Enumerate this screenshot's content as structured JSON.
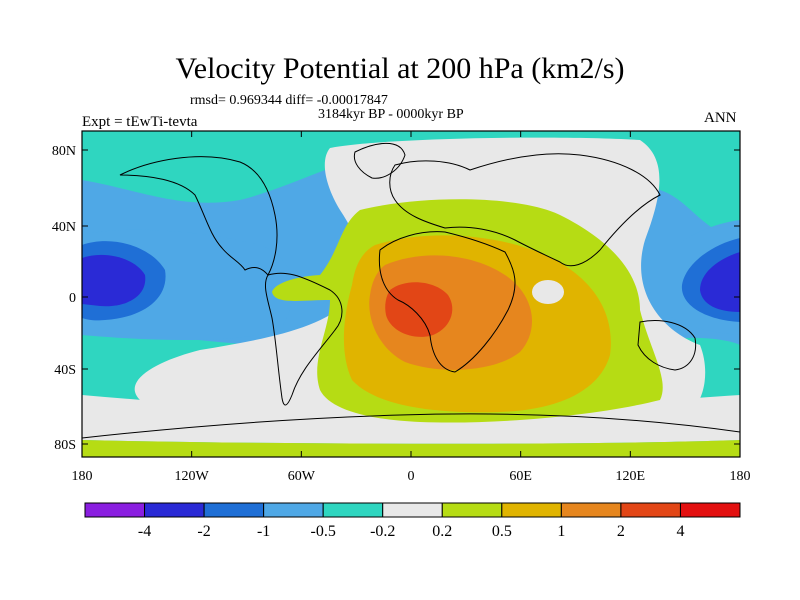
{
  "title": "Velocity Potential at 200 hPa (km2/s)",
  "stats": "rmsd= 0.969344 diff= -0.00017847",
  "period": "3184kyr BP - 0000kyr BP",
  "expt": "Expt = tEwTi-tevta",
  "season": "ANN",
  "axes": {
    "x_ticks": [
      "180",
      "120W",
      "60W",
      "0",
      "60E",
      "120E",
      "180"
    ],
    "y_ticks": [
      "80N",
      "40N",
      "0",
      "40S",
      "80S"
    ]
  },
  "colorbar": {
    "colors": [
      "#8a1ee0",
      "#2a2ad6",
      "#1f6fd6",
      "#4fa8e6",
      "#2fd6c0",
      "#e8e8e8",
      "#b6dc14",
      "#e0b400",
      "#e6861e",
      "#e24616",
      "#e31010"
    ],
    "labels": [
      "-4",
      "-2",
      "-1",
      "-0.5",
      "-0.2",
      "0.2",
      "0.5",
      "1",
      "2",
      "4"
    ]
  }
}
